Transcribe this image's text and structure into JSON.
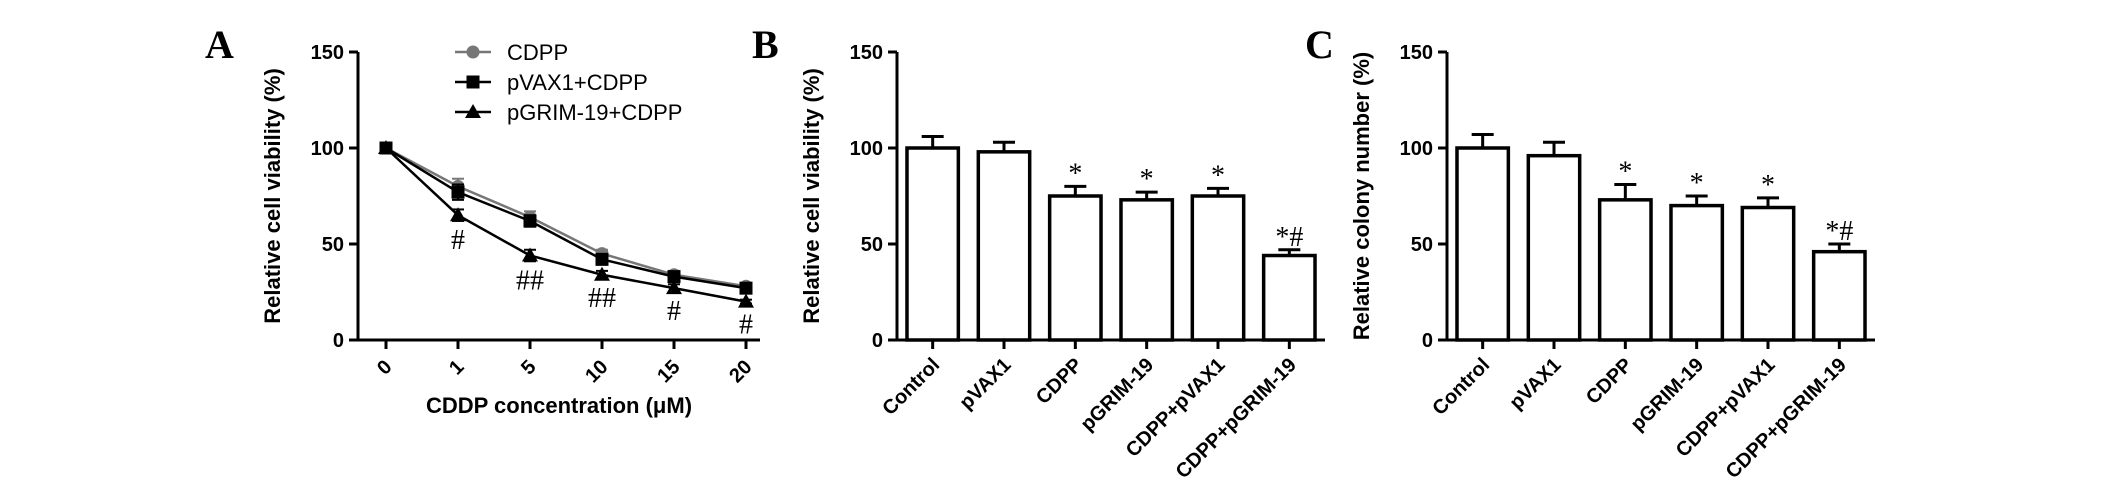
{
  "chart_data": [
    {
      "panel": "A",
      "type": "line",
      "title": "",
      "xlabel": "CDDP concentration (μM)",
      "ylabel": "Relative cell viability (%)",
      "ylim": [
        0,
        150
      ],
      "yticks": [
        0,
        50,
        100,
        150
      ],
      "categories": [
        "0",
        "1",
        "5",
        "10",
        "15",
        "20"
      ],
      "legend_position": "top-right",
      "series": [
        {
          "name": "CDPP",
          "marker": "circle",
          "color": "#777777",
          "values": [
            100,
            80,
            64,
            45,
            34,
            28
          ],
          "errors": [
            0,
            4,
            3,
            2,
            2,
            1
          ]
        },
        {
          "name": "pVAX1+CDPP",
          "marker": "square",
          "color": "#000000",
          "values": [
            100,
            77,
            62,
            42,
            33,
            27
          ],
          "errors": [
            0,
            4,
            3,
            2,
            2,
            1
          ]
        },
        {
          "name": "pGRIM-19+CDPP",
          "marker": "triangle",
          "color": "#000000",
          "values": [
            100,
            65,
            44,
            34,
            27,
            20
          ],
          "errors": [
            0,
            3,
            3,
            2,
            2,
            1
          ]
        }
      ],
      "annotations": [
        {
          "category": "1",
          "text": "#",
          "y": 52
        },
        {
          "category": "5",
          "text": "##",
          "y": 31
        },
        {
          "category": "10",
          "text": "##",
          "y": 22
        },
        {
          "category": "15",
          "text": "#",
          "y": 15
        },
        {
          "category": "20",
          "text": "#",
          "y": 8
        }
      ]
    },
    {
      "panel": "B",
      "type": "bar",
      "title": "",
      "xlabel": "",
      "ylabel": "Relative cell viability (%)",
      "ylim": [
        0,
        150
      ],
      "yticks": [
        0,
        50,
        100,
        150
      ],
      "categories": [
        "Control",
        "pVAX1",
        "CDPP",
        "pGRIM-19",
        "CDPP+pVAX1",
        "CDPP+pGRIM-19"
      ],
      "values": [
        100,
        98,
        75,
        73,
        75,
        44
      ],
      "errors": [
        6,
        5,
        5,
        4,
        4,
        3
      ],
      "annotations": [
        "",
        "",
        "*",
        "*",
        "*",
        "*#"
      ]
    },
    {
      "panel": "C",
      "type": "bar",
      "title": "",
      "xlabel": "",
      "ylabel": "Relative colony number (%)",
      "ylim": [
        0,
        150
      ],
      "yticks": [
        0,
        50,
        100,
        150
      ],
      "categories": [
        "Control",
        "pVAX1",
        "CDPP",
        "pGRIM-19",
        "CDPP+pVAX1",
        "CDPP+pGRIM-19"
      ],
      "values": [
        100,
        96,
        73,
        70,
        69,
        46
      ],
      "errors": [
        7,
        7,
        8,
        5,
        5,
        4
      ],
      "annotations": [
        "",
        "",
        "*",
        "*",
        "*",
        "*#"
      ]
    }
  ]
}
